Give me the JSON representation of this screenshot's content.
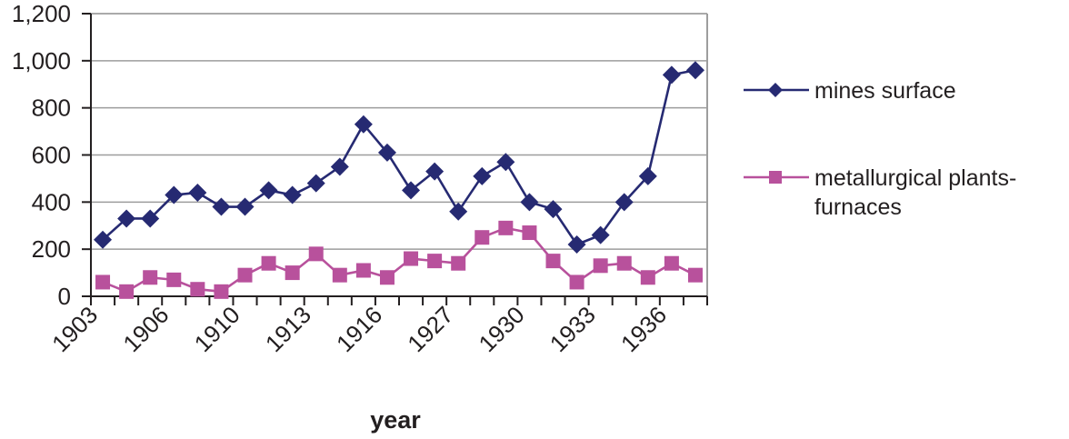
{
  "chart_data": {
    "type": "line",
    "title": "",
    "xlabel": "year",
    "ylabel": "",
    "ylim": [
      0,
      1200
    ],
    "yticks": [
      0,
      200,
      400,
      600,
      800,
      1000,
      1200
    ],
    "ytick_labels": [
      "0",
      "200",
      "400",
      "600",
      "800",
      "1,000",
      "1,200"
    ],
    "grid": true,
    "legend_position": "right",
    "x_tick_labels_visible": [
      {
        "index": 0,
        "label": "1903"
      },
      {
        "index": 3,
        "label": "1906"
      },
      {
        "index": 6,
        "label": "1910"
      },
      {
        "index": 9,
        "label": "1913"
      },
      {
        "index": 12,
        "label": "1916"
      },
      {
        "index": 15,
        "label": "1927"
      },
      {
        "index": 18,
        "label": "1930"
      },
      {
        "index": 21,
        "label": "1933"
      },
      {
        "index": 24,
        "label": "1936"
      }
    ],
    "n_categories": 26,
    "series": [
      {
        "name": "mines surface",
        "marker": "diamond",
        "color": "#262a72",
        "values": [
          240,
          330,
          330,
          430,
          440,
          380,
          380,
          450,
          430,
          480,
          550,
          730,
          610,
          450,
          530,
          360,
          510,
          570,
          400,
          370,
          220,
          260,
          400,
          510,
          940,
          960
        ]
      },
      {
        "name": "metallurgical plants-furnaces",
        "marker": "square",
        "color": "#b8519c",
        "values": [
          60,
          20,
          80,
          70,
          30,
          20,
          90,
          140,
          100,
          180,
          90,
          110,
          80,
          160,
          150,
          140,
          250,
          290,
          270,
          150,
          60,
          130,
          140,
          80,
          140,
          90
        ]
      }
    ]
  },
  "legend": {
    "items": [
      {
        "label_line1": "mines surface",
        "label_line2": ""
      },
      {
        "label_line1": "metallurgical plants-",
        "label_line2": "furnaces"
      }
    ]
  },
  "axis": {
    "x_title": "year"
  }
}
